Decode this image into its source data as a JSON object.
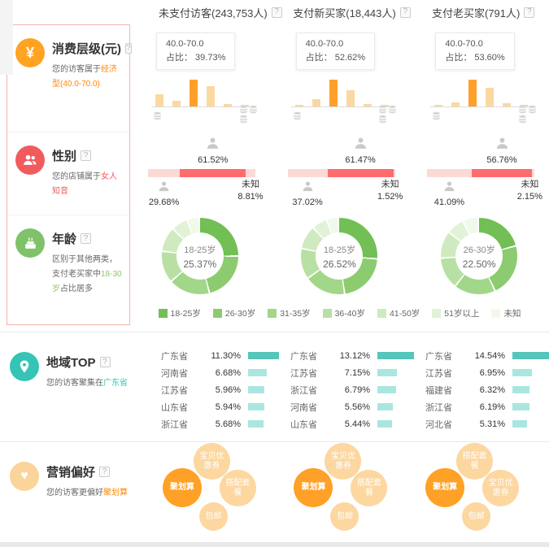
{
  "ui": {
    "help_glyph": "?"
  },
  "colors": {
    "bar_light": "#fbd8a0",
    "bar_highlight": "#ffa02a",
    "female": "#ff6b6e",
    "gender_light": "#fbdad6",
    "region_first": "#56c5ba",
    "region_rest": "#a9e6e0",
    "bubble_dark": "#ffa126",
    "bubble_light": "#fcd7a0",
    "legend": [
      "#72bf55",
      "#8ccb6f",
      "#a2d689",
      "#b9e0a4",
      "#cfeabf",
      "#e2f2d7",
      "#f1f9ea"
    ]
  },
  "header": {
    "columns": [
      "未支付访客(243,753人)",
      "支付新买家(18,443人)",
      "支付老买家(791人)"
    ]
  },
  "consumption": {
    "title": "消费层级(元)",
    "subtitle_prefix": "您的访客属于",
    "subtitle_highlight": "经济型(40.0-70.0)",
    "tooltip_range": "40.0-70.0",
    "tooltip_label": "占比：",
    "columns": [
      {
        "tooltip_value": "39.73%",
        "bar_heights_rel": [
          45,
          21,
          100,
          76,
          9,
          4
        ],
        "highlight_index": 2
      },
      {
        "tooltip_value": "52.62%",
        "bar_heights_rel": [
          6,
          27,
          100,
          61,
          9,
          5
        ],
        "highlight_index": 2
      },
      {
        "tooltip_value": "53.60%",
        "bar_heights_rel": [
          4,
          16,
          100,
          70,
          12,
          4
        ],
        "highlight_index": 2
      }
    ]
  },
  "gender": {
    "title": "性别",
    "subtitle_prefix": "您的店铺属于",
    "subtitle_highlight": "女人知音",
    "unknown_label": "未知",
    "columns": [
      {
        "female": "61.52%",
        "male": "29.68%",
        "unknown": "8.81%"
      },
      {
        "female": "61.47%",
        "male": "37.02%",
        "unknown": "1.52%"
      },
      {
        "female": "56.76%",
        "male": "41.09%",
        "unknown": "2.15%"
      }
    ]
  },
  "age": {
    "title": "年龄",
    "subtitle_prefix": "区别于其他两类，支付老买家中",
    "subtitle_highlight": "18-30岁",
    "subtitle_suffix": "占比居多",
    "legend_labels": [
      "18-25岁",
      "26-30岁",
      "31-35岁",
      "36-40岁",
      "41-50岁",
      "51岁以上",
      "未知"
    ],
    "columns": [
      {
        "center_label": "18-25岁",
        "center_value": "25.37%",
        "segments": [
          25.37,
          21.0,
          17.5,
          13.5,
          10.5,
          7.0,
          5.13
        ]
      },
      {
        "center_label": "18-25岁",
        "center_value": "26.52%",
        "segments": [
          26.52,
          21.5,
          17.5,
          13.0,
          10.0,
          6.5,
          4.98
        ]
      },
      {
        "center_label": "26-30岁",
        "center_value": "22.50%",
        "segments": [
          21.0,
          22.5,
          17.5,
          13.5,
          11.5,
          7.5,
          6.5
        ]
      }
    ]
  },
  "region": {
    "title": "地域TOP",
    "subtitle_prefix": "您的访客聚集在",
    "subtitle_highlight": "广东省",
    "columns": [
      {
        "items": [
          {
            "name": "广东省",
            "value": "11.30%"
          },
          {
            "name": "河南省",
            "value": "6.68%"
          },
          {
            "name": "江苏省",
            "value": "5.96%"
          },
          {
            "name": "山东省",
            "value": "5.94%"
          },
          {
            "name": "浙江省",
            "value": "5.68%"
          }
        ]
      },
      {
        "items": [
          {
            "name": "广东省",
            "value": "13.12%"
          },
          {
            "name": "江苏省",
            "value": "7.15%"
          },
          {
            "name": "浙江省",
            "value": "6.79%"
          },
          {
            "name": "河南省",
            "value": "5.56%"
          },
          {
            "name": "山东省",
            "value": "5.44%"
          }
        ]
      },
      {
        "items": [
          {
            "name": "广东省",
            "value": "14.54%"
          },
          {
            "name": "江苏省",
            "value": "6.95%"
          },
          {
            "name": "福建省",
            "value": "6.32%"
          },
          {
            "name": "浙江省",
            "value": "6.19%"
          },
          {
            "name": "河北省",
            "value": "5.31%"
          }
        ]
      }
    ]
  },
  "marketing": {
    "title": "营销偏好",
    "subtitle_prefix": "您的访客更偏好",
    "subtitle_highlight": "聚划算",
    "columns": [
      {
        "bubbles": [
          {
            "label": "聚划算",
            "emphasis": true,
            "pos": "left"
          },
          {
            "label": "宝贝优惠券",
            "emphasis": false,
            "pos": "top"
          },
          {
            "label": "搭配套餐",
            "emphasis": false,
            "pos": "right"
          },
          {
            "label": "包邮",
            "emphasis": false,
            "pos": "bottom"
          }
        ]
      },
      {
        "bubbles": [
          {
            "label": "聚划算",
            "emphasis": true,
            "pos": "left"
          },
          {
            "label": "宝贝优惠券",
            "emphasis": false,
            "pos": "top"
          },
          {
            "label": "搭配套餐",
            "emphasis": false,
            "pos": "right"
          },
          {
            "label": "包邮",
            "emphasis": false,
            "pos": "bottom"
          }
        ]
      },
      {
        "bubbles": [
          {
            "label": "聚划算",
            "emphasis": true,
            "pos": "left"
          },
          {
            "label": "搭配套餐",
            "emphasis": false,
            "pos": "top"
          },
          {
            "label": "宝贝优惠券",
            "emphasis": false,
            "pos": "right"
          },
          {
            "label": "包邮",
            "emphasis": false,
            "pos": "bottom"
          }
        ]
      }
    ]
  }
}
